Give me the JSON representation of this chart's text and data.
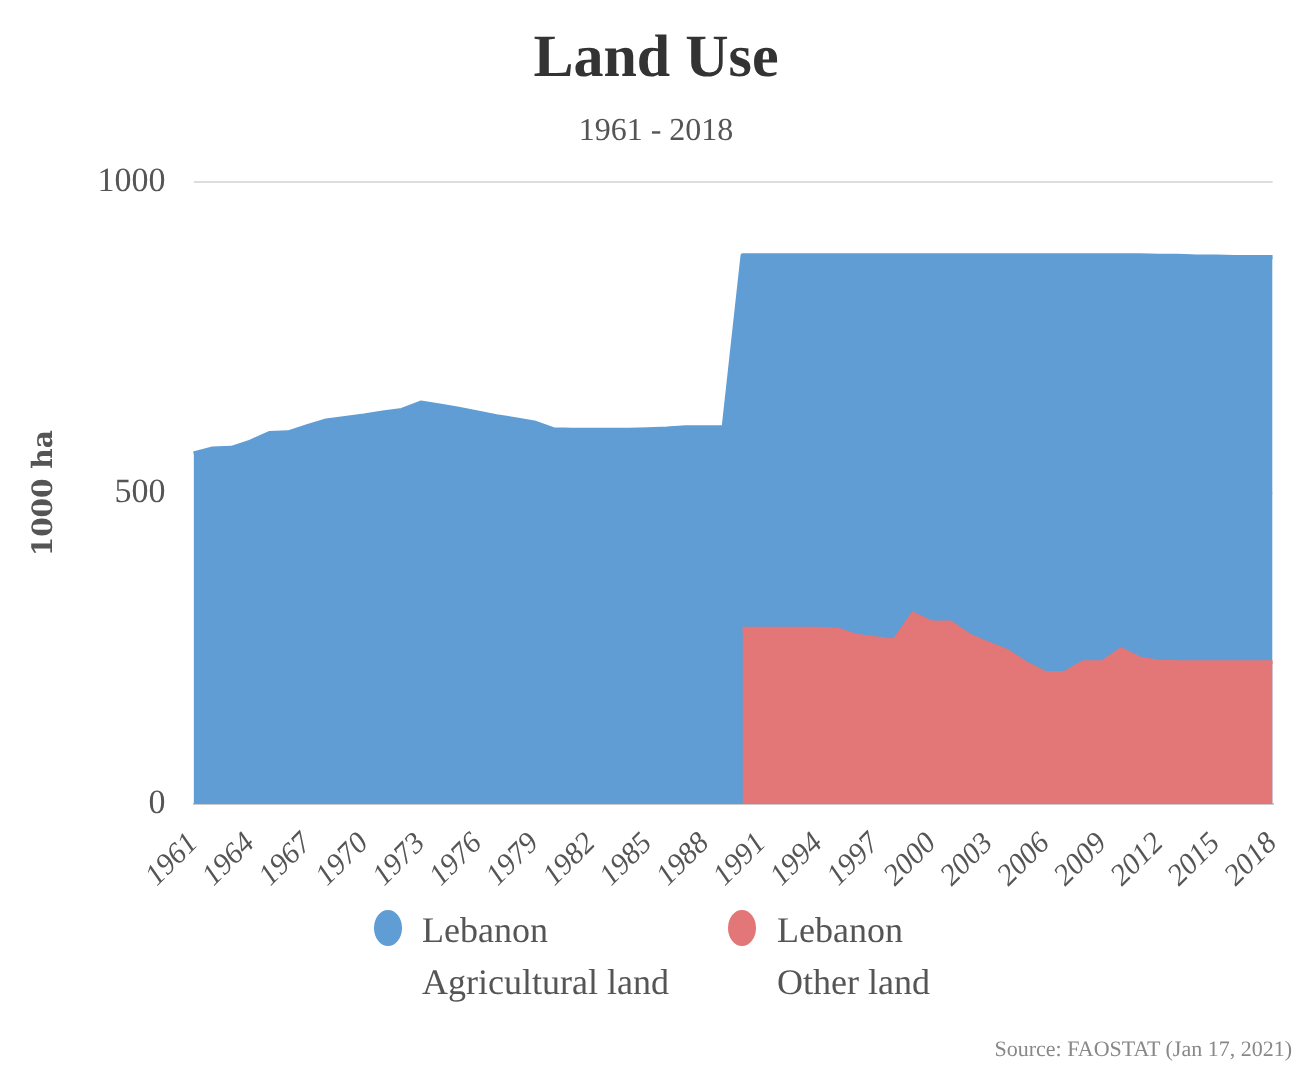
{
  "chart_data": {
    "type": "area",
    "title": "Land Use",
    "subtitle": "1961 - 2018",
    "ylabel": "1000 ha",
    "categories": [
      "1961",
      null,
      null,
      "1964",
      null,
      null,
      "1967",
      null,
      null,
      "1970",
      null,
      null,
      "1973",
      null,
      null,
      "1976",
      null,
      null,
      "1979",
      null,
      null,
      "1982",
      null,
      null,
      "1985",
      null,
      null,
      "1988",
      null,
      null,
      "1991",
      null,
      null,
      "1994",
      null,
      null,
      "1997",
      null,
      null,
      "2000",
      null,
      null,
      "2003",
      null,
      null,
      "2006",
      null,
      null,
      "2009",
      null,
      null,
      "2012",
      null,
      null,
      "2015",
      null,
      null,
      "2018"
    ],
    "series": [
      {
        "name": "Lebanon\nAgricultural land",
        "color": "#5f9dd4",
        "values": [
          564,
          572,
          573,
          583,
          597,
          598,
          608,
          617,
          621,
          625,
          630,
          634,
          646,
          641,
          636,
          630,
          624,
          619,
          614,
          603,
          602,
          602,
          602,
          602,
          603,
          604,
          606,
          606,
          606,
          883,
          883,
          883,
          883,
          883,
          883,
          883,
          883,
          883,
          883,
          883,
          883,
          883,
          883,
          883,
          883,
          883,
          883,
          883,
          883,
          883,
          883,
          882,
          882,
          881,
          881,
          880,
          880,
          880
        ]
      },
      {
        "name": "Lebanon\nOther land",
        "color": "#e37676",
        "values": [
          null,
          null,
          null,
          null,
          null,
          null,
          null,
          null,
          null,
          null,
          null,
          null,
          null,
          null,
          null,
          null,
          null,
          null,
          null,
          null,
          null,
          null,
          null,
          null,
          null,
          null,
          null,
          null,
          null,
          282,
          282,
          282,
          282,
          282,
          281,
          271,
          267,
          263,
          306,
          292,
          292,
          271,
          258,
          246,
          226,
          211,
          211,
          228,
          228,
          249,
          234,
          229,
          228,
          228,
          228,
          228,
          228,
          228
        ]
      }
    ],
    "ylim": [
      0,
      1000
    ],
    "yticks": [
      0,
      500,
      1000
    ],
    "grid": "y",
    "legend": "bottom",
    "annotations": [
      "Source: FAOSTAT (Jan 17, 2021)"
    ]
  }
}
